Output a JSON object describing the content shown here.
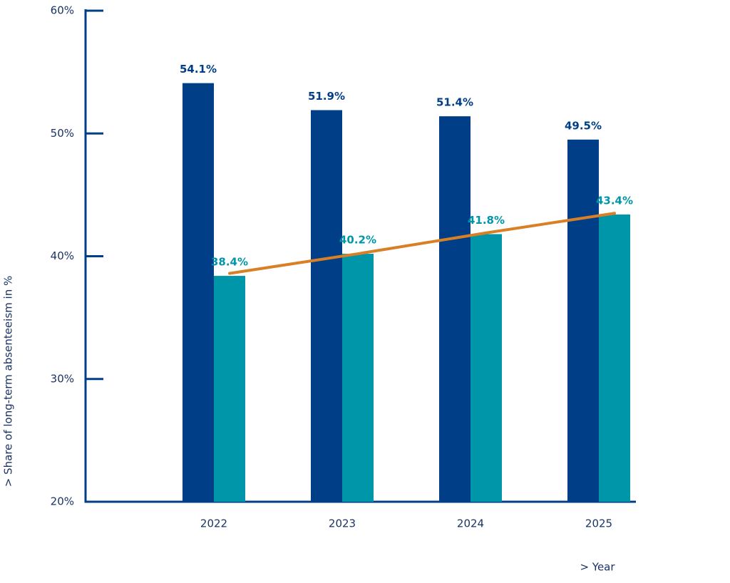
{
  "chart_data": {
    "type": "bar",
    "x_label": "> Year",
    "y_label": "> Share of long-term absenteeism in %",
    "categories": [
      "2022",
      "2023",
      "2024",
      "2025"
    ],
    "series": [
      {
        "color": "#003f87",
        "values": [
          54.1,
          51.9,
          51.4,
          49.5
        ],
        "value_labels": [
          "54.1%",
          "51.9%",
          "51.4%",
          "49.5%"
        ]
      },
      {
        "color": "#0096aa",
        "values": [
          38.4,
          40.2,
          41.8,
          43.4
        ],
        "value_labels": [
          "38.4%",
          "40.2%",
          "41.8%",
          "43.4%"
        ]
      }
    ],
    "trend_line": {
      "type": "line",
      "color": "#d98026",
      "values": [
        38.6,
        40.2,
        41.9,
        43.5
      ]
    },
    "ylim": [
      20,
      60
    ],
    "yticks": [
      {
        "value": 20,
        "label": "20%"
      },
      {
        "value": 30,
        "label": "30%"
      },
      {
        "value": 40,
        "label": "40%"
      },
      {
        "value": 50,
        "label": "50%"
      },
      {
        "value": 60,
        "label": "60%"
      }
    ],
    "grid": false
  }
}
